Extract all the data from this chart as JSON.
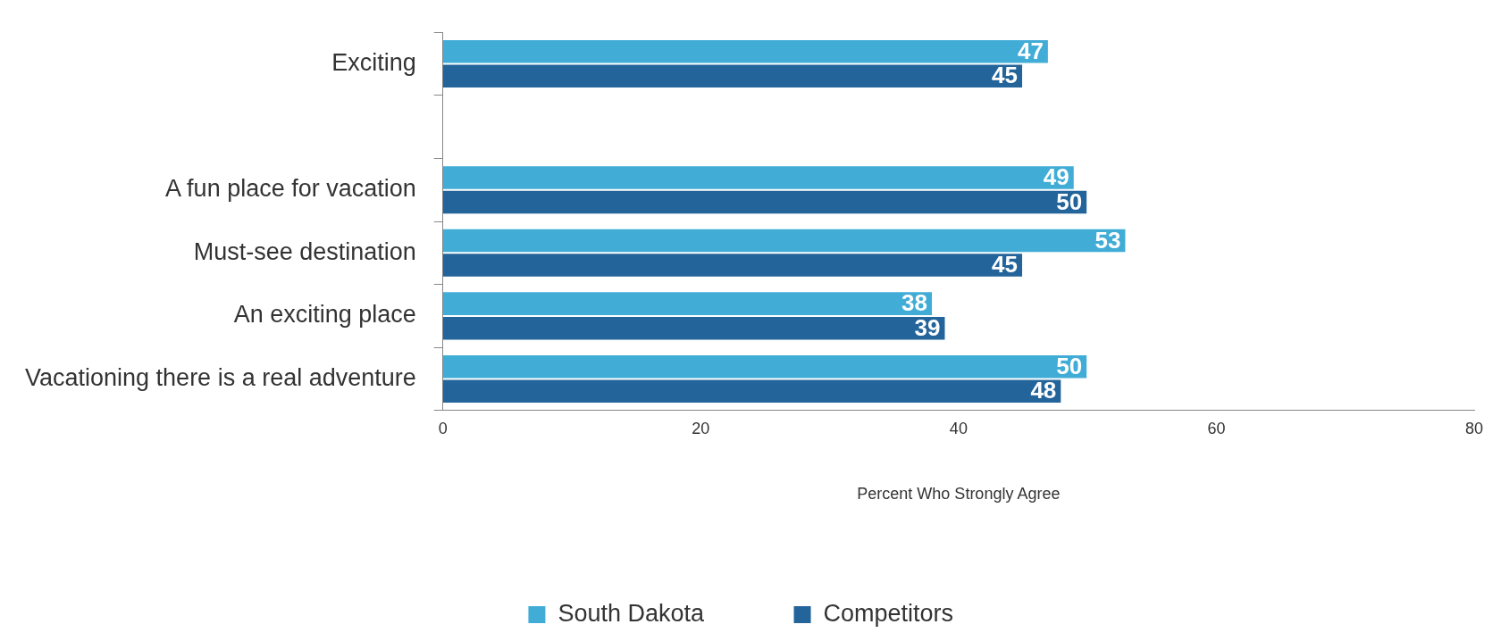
{
  "chart_data": {
    "type": "bar",
    "orientation": "horizontal",
    "categories": [
      "Exciting",
      null,
      "A fun place for vacation",
      "Must-see destination",
      "An exciting place",
      "Vacationing there is a real adventure"
    ],
    "series": [
      {
        "name": "South Dakota",
        "color": "#41acd6",
        "values": [
          47,
          null,
          49,
          53,
          38,
          50
        ]
      },
      {
        "name": "Competitors",
        "color": "#23649a",
        "values": [
          45,
          null,
          50,
          45,
          39,
          48
        ]
      }
    ],
    "xlim": [
      0,
      80
    ],
    "xticks": [
      0,
      20,
      40,
      60,
      80
    ],
    "xlabel": "Percent Who Strongly Agree",
    "data_labels": true,
    "legend": "bottom",
    "grid": false
  }
}
